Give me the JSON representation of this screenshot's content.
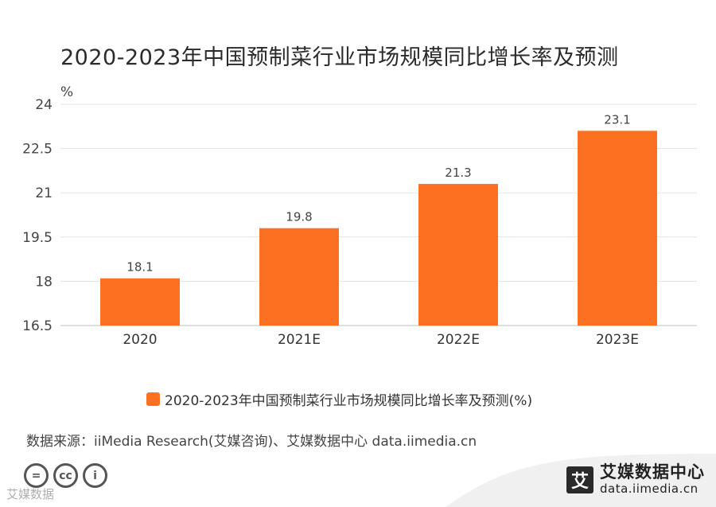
{
  "title": "2020-2023年中国预制菜行业市场规模同比增长率及预测",
  "chart_data": {
    "type": "bar",
    "title": "2020-2023年中国预制菜行业市场规模同比增长率及预测",
    "ylabel": "%",
    "xlabel": "",
    "categories": [
      "2020",
      "2021E",
      "2022E",
      "2023E"
    ],
    "values": [
      18.1,
      19.8,
      21.3,
      23.1
    ],
    "data_labels": [
      "18.1",
      "19.8",
      "21.3",
      "23.1"
    ],
    "ylim": [
      16.5,
      24
    ],
    "yticks": [
      16.5,
      18,
      19.5,
      21,
      22.5,
      24
    ],
    "ytick_labels": [
      "16.5",
      "18",
      "19.5",
      "21",
      "22.5",
      "24"
    ],
    "grid": true,
    "bar_color": "#fc7121",
    "series": [
      {
        "name": "2020-2023年中国预制菜行业市场规模同比增长率及预测(%)",
        "values": [
          18.1,
          19.8,
          21.3,
          23.1
        ]
      }
    ],
    "legend_position": "bottom"
  },
  "legend": {
    "label": "2020-2023年中国预制菜行业市场规模同比增长率及预测(%)"
  },
  "source": "数据来源：iiMedia Research(艾媒咨询)、艾媒数据中心 data.iimedia.cn",
  "footer": {
    "brand_logo": "艾",
    "brand_name": "艾媒数据中心",
    "brand_url": "data.iimedia.cn",
    "watermark": "艾媒数据",
    "cc_icons": [
      "=",
      "cc",
      "i"
    ]
  }
}
